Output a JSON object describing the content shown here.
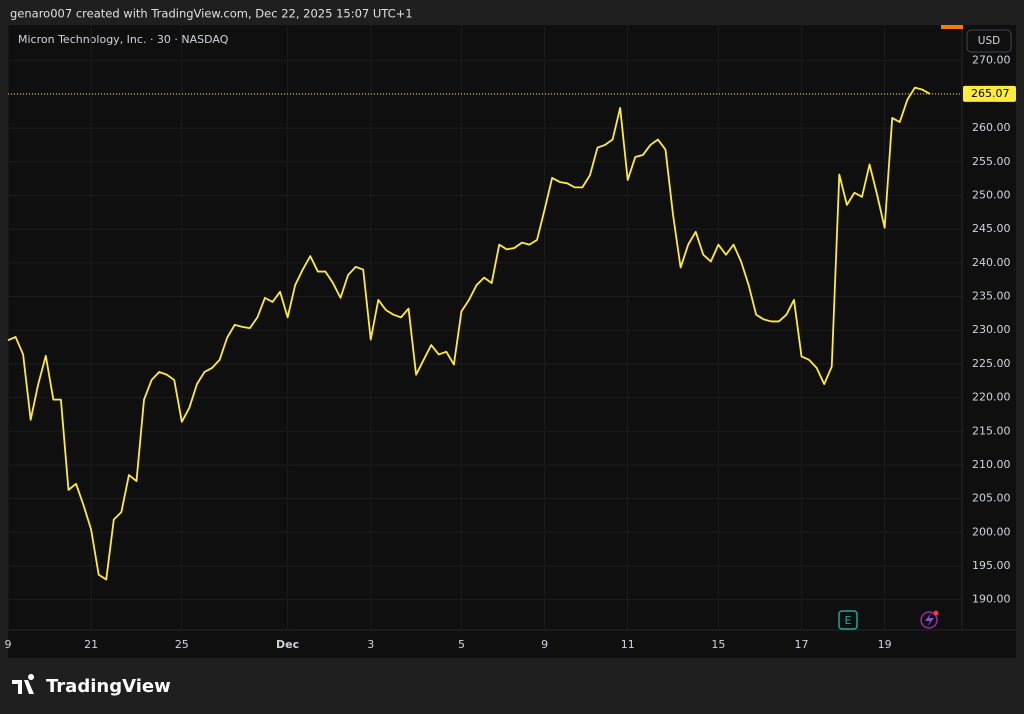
{
  "header": {
    "text": "genaro007 created with TradingView.com, Dec 22, 2025 15:07 UTC+1"
  },
  "footer": {
    "logo_text": "TradingView"
  },
  "chart_data": {
    "type": "line",
    "title": "Micron Technology, Inc. · 30 · NASDAQ",
    "currency": "USD",
    "earnings_marker": "E",
    "color": "#ffeb3b",
    "grid": true,
    "ylim": [
      185.5,
      275.3
    ],
    "yticks": [
      {
        "value": 190,
        "label": "190.00"
      },
      {
        "value": 195,
        "label": "195.00"
      },
      {
        "value": 200,
        "label": "200.00"
      },
      {
        "value": 205,
        "label": "205.00"
      },
      {
        "value": 210,
        "label": "210.00"
      },
      {
        "value": 215,
        "label": "215.00"
      },
      {
        "value": 220,
        "label": "220.00"
      },
      {
        "value": 225,
        "label": "225.00"
      },
      {
        "value": 230,
        "label": "230.00"
      },
      {
        "value": 235,
        "label": "235.00"
      },
      {
        "value": 240,
        "label": "240.00"
      },
      {
        "value": 245,
        "label": "245.00"
      },
      {
        "value": 250,
        "label": "250.00"
      },
      {
        "value": 255,
        "label": "255.00"
      },
      {
        "value": 260,
        "label": "260.00"
      },
      {
        "value": 265,
        "label": "265.00"
      },
      {
        "value": 270,
        "label": "270.00"
      }
    ],
    "categories": [
      "9",
      null,
      null,
      null,
      null,
      null,
      null,
      null,
      null,
      null,
      null,
      "21",
      null,
      null,
      null,
      null,
      null,
      null,
      null,
      null,
      null,
      null,
      null,
      "25",
      null,
      null,
      null,
      null,
      null,
      null,
      null,
      null,
      null,
      null,
      null,
      null,
      null,
      "Dec",
      null,
      null,
      null,
      null,
      null,
      null,
      null,
      null,
      null,
      null,
      "3",
      null,
      null,
      null,
      null,
      null,
      null,
      null,
      null,
      null,
      null,
      null,
      "5",
      null,
      null,
      null,
      null,
      null,
      null,
      null,
      null,
      null,
      null,
      "9",
      null,
      null,
      null,
      null,
      null,
      null,
      null,
      null,
      null,
      null,
      "11",
      null,
      null,
      null,
      null,
      null,
      null,
      null,
      null,
      null,
      null,
      null,
      "15",
      null,
      null,
      null,
      null,
      null,
      null,
      null,
      null,
      null,
      null,
      "17",
      null,
      null,
      null,
      null,
      null,
      null,
      null,
      null,
      null,
      null,
      "19",
      null,
      null,
      null,
      null,
      null,
      null
    ],
    "values": [
      228.5,
      229,
      226.4,
      216.7,
      222,
      226.2,
      219.7,
      219.7,
      206.3,
      207.2,
      204,
      200.4,
      193.7,
      193,
      201.9,
      203,
      208.5,
      207.6,
      219.7,
      222.6,
      223.8,
      223.4,
      222.6,
      216.4,
      218.5,
      222,
      223.8,
      224.4,
      225.6,
      228.9,
      230.8,
      230.5,
      230.3,
      231.9,
      234.8,
      234.2,
      235.7,
      231.9,
      236.7,
      239,
      241,
      238.7,
      238.7,
      237,
      234.8,
      238.2,
      239.4,
      239,
      228.6,
      234.5,
      233,
      232.3,
      231.9,
      233.2,
      223.4,
      225.6,
      227.8,
      226.4,
      226.8,
      224.9,
      232.8,
      234.5,
      236.7,
      237.8,
      237,
      242.7,
      242,
      242.2,
      243,
      242.7,
      243.4,
      247.9,
      252.6,
      252,
      251.8,
      251.2,
      251.2,
      253,
      257.1,
      257.5,
      258.3,
      263,
      252.3,
      255.7,
      256,
      257.5,
      258.3,
      256.8,
      247.1,
      239.3,
      242.7,
      244.6,
      241.2,
      240.2,
      242.7,
      241.2,
      242.7,
      240.2,
      236.7,
      232.3,
      231.6,
      231.3,
      231.3,
      232.3,
      234.5,
      226.1,
      225.6,
      224.4,
      222,
      224.6,
      253.1,
      248.6,
      250.4,
      249.8,
      254.6,
      250.1,
      245.2,
      261.5,
      260.9,
      264.2,
      266,
      265.7,
      265.07
    ]
  }
}
